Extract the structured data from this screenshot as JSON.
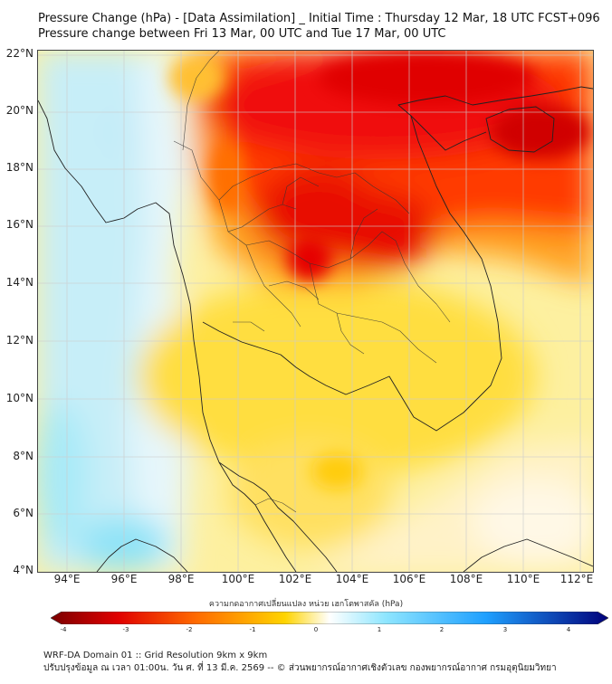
{
  "title": {
    "line1": "Pressure Change (hPa) - [Data Assimilation] _ Initial Time : Thursday 12 Mar, 18 UTC FCST+096",
    "line2": "Pressure change between Fri 13 Mar, 00 UTC and Tue 17 Mar, 00 UTC"
  },
  "axes": {
    "lat_labels": [
      "22°N",
      "20°N",
      "18°N",
      "16°N",
      "14°N",
      "12°N",
      "10°N",
      "8°N",
      "6°N",
      "4°N"
    ],
    "lon_labels": [
      "94°E",
      "96°E",
      "98°E",
      "100°E",
      "102°E",
      "104°E",
      "106°E",
      "108°E",
      "110°E",
      "112°E"
    ]
  },
  "colorbar": {
    "title": "ความกดอากาศเปลี่ยนแปลง หน่วย เฮกโตพาสคัล (hPa)",
    "ticks": [
      "-4",
      "-3",
      "-2",
      "-1",
      "0",
      "1",
      "2",
      "3",
      "4"
    ],
    "colors": {
      "min": "#7a0000",
      "neg_strong": "#e00000",
      "neg_mid": "#ff6a00",
      "neg_light": "#ffd400",
      "zero": "#ffffff",
      "pos_light": "#8fe6ff",
      "pos_mid": "#1fa0ff",
      "max": "#00007a"
    }
  },
  "footer": {
    "line1": "WRF-DA Domain 01 :: Grid Resolution 9km x 9km",
    "line2": "ปรับปรุงข้อมูล ณ เวลา 01:00น. วัน ศ. ที่ 13 มี.ค. 2569 -- © ส่วนพยากรณ์อากาศเชิงตัวเลข กองพยากรณ์อากาศ กรมอุตุนิยมวิทยา"
  }
}
